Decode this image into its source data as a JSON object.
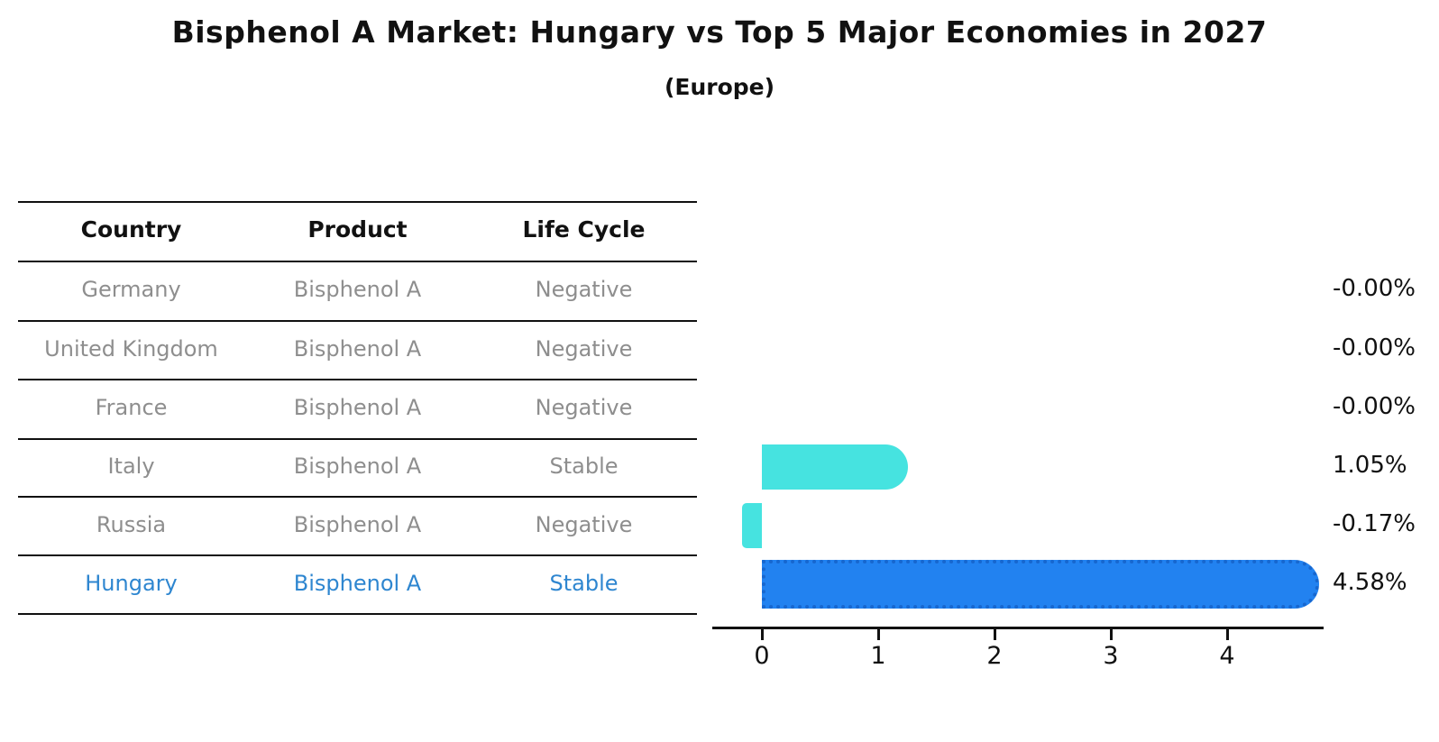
{
  "title": "Bisphenol A Market: Hungary vs Top 5 Major Economies in 2027",
  "subtitle": "(Europe)",
  "table": {
    "columns": [
      "Country",
      "Product",
      "Life Cycle"
    ],
    "rows": [
      {
        "country": "Germany",
        "product": "Bisphenol A",
        "life_cycle": "Negative",
        "highlight": false
      },
      {
        "country": "United Kingdom",
        "product": "Bisphenol A",
        "life_cycle": "Negative",
        "highlight": false
      },
      {
        "country": "France",
        "product": "Bisphenol A",
        "life_cycle": "Negative",
        "highlight": false
      },
      {
        "country": "Italy",
        "product": "Bisphenol A",
        "life_cycle": "Stable",
        "highlight": false
      },
      {
        "country": "Russia",
        "product": "Bisphenol A",
        "life_cycle": "Negative",
        "highlight": false
      },
      {
        "country": "Hungary",
        "product": "Bisphenol A",
        "life_cycle": "Stable",
        "highlight": true
      }
    ]
  },
  "chart_data": {
    "type": "bar",
    "orientation": "horizontal",
    "title": "Bisphenol A Market: Hungary vs Top 5 Major Economies in 2027 (Europe)",
    "categories": [
      "Germany",
      "United Kingdom",
      "France",
      "Italy",
      "Russia",
      "Hungary"
    ],
    "values": [
      -0.0,
      -0.0,
      -0.0,
      1.05,
      -0.17,
      4.58
    ],
    "value_labels": [
      "-0.00%",
      "-0.00%",
      "-0.00%",
      "1.05%",
      "-0.17%",
      "4.58%"
    ],
    "xticks": [
      "0",
      "1",
      "2",
      "3",
      "4"
    ],
    "xlim": [
      -0.43,
      4.83
    ],
    "xlabel": "",
    "ylabel": "",
    "grid": false,
    "legend": false,
    "highlight_index": 5,
    "bar_color_default": "#46e3e0",
    "bar_color_highlight": "#2282f0",
    "highlight_border_color": "#1767cf"
  },
  "colors": {
    "text_dark": "#111111",
    "text_muted": "#8e8e8e",
    "text_highlight": "#2e86d0"
  }
}
